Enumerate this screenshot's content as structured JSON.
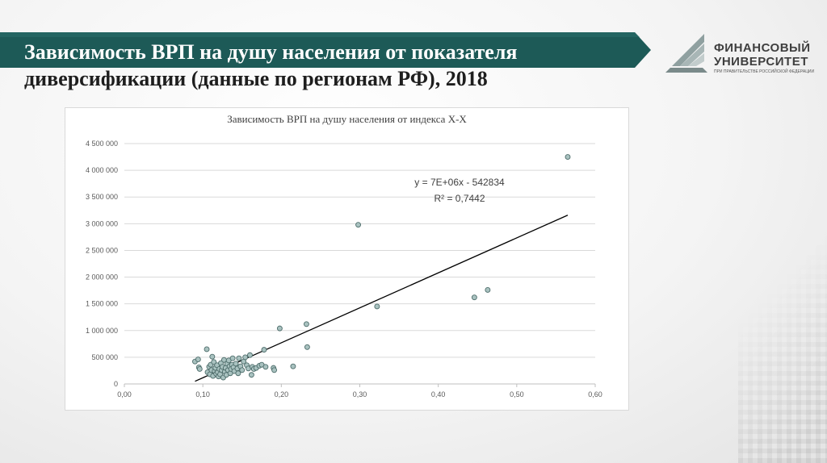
{
  "slide": {
    "title_line1": "Зависимость ВРП на душу населения от показателя",
    "title_line2": "диверсификации (данные по регионам РФ), 2018"
  },
  "logo": {
    "line1": "ФИНАНСОВЫЙ",
    "line2": "УНИВЕРСИТЕТ",
    "sub": "ПРИ ПРАВИТЕЛЬСТВЕ РОССИЙСКОЙ ФЕДЕРАЦИИ"
  },
  "colors": {
    "banner": "#1d5a57",
    "marker_fill": "#a9c2c0",
    "marker_stroke": "#4e6d6b",
    "trendline": "#000000",
    "grid": "#d9d9d9"
  },
  "chart_data": {
    "type": "scatter",
    "title": "Зависимость ВРП на душу населения от индекса Х-Х",
    "xlim": [
      0,
      0.6
    ],
    "ylim": [
      0,
      4500000
    ],
    "x_ticks": [
      "0,00",
      "0,10",
      "0,20",
      "0,30",
      "0,40",
      "0,50",
      "0,60"
    ],
    "y_ticks": [
      "0",
      "500 000",
      "1 000 000",
      "1 500 000",
      "2 000 000",
      "2 500 000",
      "3 000 000",
      "3 500 000",
      "4 000 000",
      "4 500 000"
    ],
    "grid": "horizontal",
    "trendline": {
      "equation": "y = 7E+06x - 542834",
      "r2": "R² = 0,7442",
      "x": [
        0.09,
        0.565
      ],
      "y": [
        50000,
        3160000
      ]
    },
    "series": [
      {
        "points": [
          [
            0.09,
            420000
          ],
          [
            0.094,
            460000
          ],
          [
            0.095,
            310000
          ],
          [
            0.096,
            280000
          ],
          [
            0.105,
            650000
          ],
          [
            0.106,
            220000
          ],
          [
            0.108,
            320000
          ],
          [
            0.109,
            180000
          ],
          [
            0.11,
            360000
          ],
          [
            0.111,
            260000
          ],
          [
            0.112,
            510000
          ],
          [
            0.113,
            150000
          ],
          [
            0.114,
            410000
          ],
          [
            0.115,
            240000
          ],
          [
            0.116,
            300000
          ],
          [
            0.117,
            190000
          ],
          [
            0.118,
            350000
          ],
          [
            0.119,
            220000
          ],
          [
            0.12,
            140000
          ],
          [
            0.121,
            280000
          ],
          [
            0.122,
            180000
          ],
          [
            0.123,
            390000
          ],
          [
            0.124,
            260000
          ],
          [
            0.125,
            320000
          ],
          [
            0.126,
            120000
          ],
          [
            0.127,
            450000
          ],
          [
            0.128,
            230000
          ],
          [
            0.129,
            300000
          ],
          [
            0.13,
            170000
          ],
          [
            0.131,
            380000
          ],
          [
            0.132,
            260000
          ],
          [
            0.133,
            440000
          ],
          [
            0.134,
            330000
          ],
          [
            0.135,
            200000
          ],
          [
            0.136,
            280000
          ],
          [
            0.137,
            360000
          ],
          [
            0.138,
            480000
          ],
          [
            0.139,
            310000
          ],
          [
            0.14,
            240000
          ],
          [
            0.142,
            380000
          ],
          [
            0.144,
            290000
          ],
          [
            0.145,
            200000
          ],
          [
            0.146,
            480000
          ],
          [
            0.148,
            330000
          ],
          [
            0.15,
            260000
          ],
          [
            0.152,
            420000
          ],
          [
            0.154,
            500000
          ],
          [
            0.156,
            350000
          ],
          [
            0.158,
            290000
          ],
          [
            0.16,
            540000
          ],
          [
            0.162,
            170000
          ],
          [
            0.163,
            320000
          ],
          [
            0.165,
            280000
          ],
          [
            0.168,
            300000
          ],
          [
            0.172,
            340000
          ],
          [
            0.175,
            360000
          ],
          [
            0.178,
            640000
          ],
          [
            0.18,
            320000
          ],
          [
            0.19,
            300000
          ],
          [
            0.191,
            260000
          ],
          [
            0.198,
            1040000
          ],
          [
            0.215,
            330000
          ],
          [
            0.232,
            1120000
          ],
          [
            0.233,
            690000
          ],
          [
            0.298,
            2980000
          ],
          [
            0.322,
            1450000
          ],
          [
            0.446,
            1620000
          ],
          [
            0.463,
            1760000
          ],
          [
            0.565,
            4250000
          ]
        ]
      }
    ]
  }
}
